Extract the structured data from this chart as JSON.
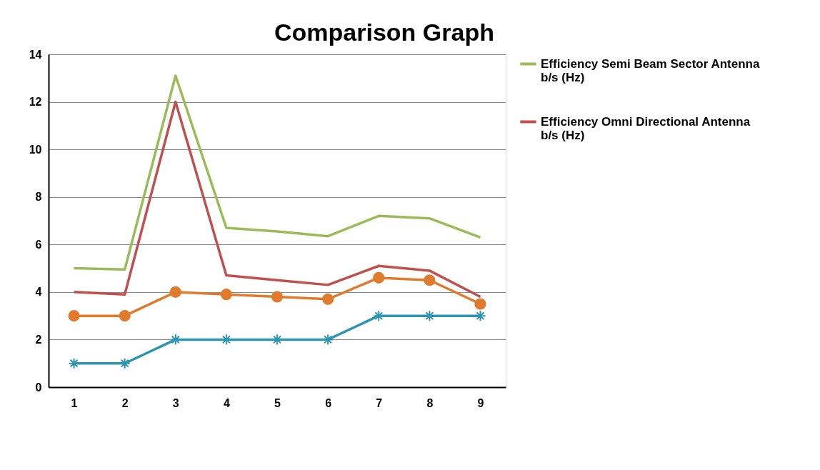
{
  "chart_data": {
    "type": "line",
    "title": "Comparison Graph",
    "categories": [
      "1",
      "2",
      "3",
      "4",
      "5",
      "6",
      "7",
      "8",
      "9"
    ],
    "series": [
      {
        "name": "Efficiency Semi Beam Sector Antenna b/s (Hz)",
        "color": "#9bbb59",
        "marker": "none",
        "values": [
          5.0,
          4.95,
          13.1,
          6.7,
          6.55,
          6.35,
          7.2,
          7.1,
          6.3
        ]
      },
      {
        "name": "Efficiency Omni Directional Antenna b/s (Hz)",
        "color": "#c0504d",
        "marker": "none",
        "values": [
          4.0,
          3.9,
          12.0,
          4.7,
          4.5,
          4.3,
          5.1,
          4.9,
          3.8
        ]
      },
      {
        "color": "#e07b2e",
        "marker": "circle",
        "values": [
          3,
          3,
          4,
          3.9,
          3.8,
          3.7,
          4.6,
          4.5,
          3.5
        ]
      },
      {
        "color": "#2e95b0",
        "marker": "cross",
        "values": [
          1,
          1,
          2,
          2,
          2,
          2,
          3,
          3,
          3
        ]
      }
    ],
    "ylim": [
      0,
      14
    ],
    "yticks": [
      0,
      2,
      4,
      6,
      8,
      10,
      12,
      14
    ],
    "grid": "y",
    "legend": "right",
    "line_style": "solid"
  }
}
